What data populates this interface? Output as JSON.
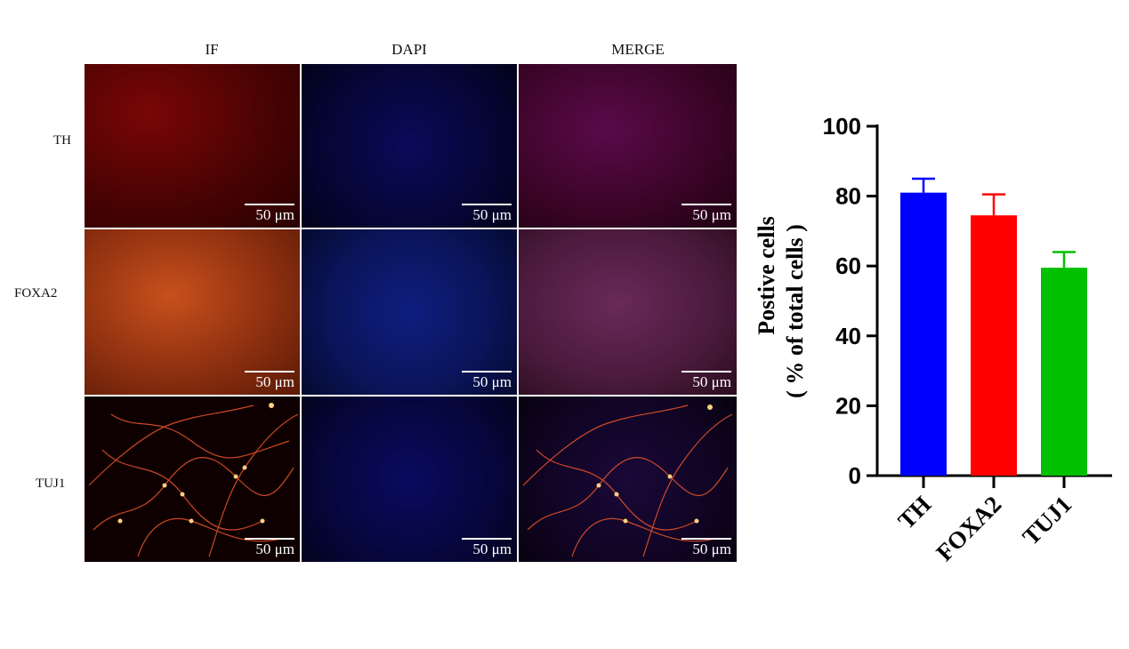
{
  "figure": {
    "column_labels": [
      "IF",
      "DAPI",
      "MERGE"
    ],
    "row_labels": [
      "TH",
      "FOXA2",
      "TUJ1"
    ],
    "scale_bar_label": "50 μm"
  },
  "chart_data": {
    "type": "bar",
    "categories": [
      "TH",
      "FOXA2",
      "TUJ1"
    ],
    "values": [
      81,
      74.5,
      59.5
    ],
    "errors": [
      4,
      6,
      4.5
    ],
    "colors": [
      "#0000ff",
      "#ff0000",
      "#00c000"
    ],
    "ylabel_line1": "Postive cells",
    "ylabel_line2": "( % of total cells )",
    "ylim": [
      0,
      100
    ],
    "yticks": [
      "0",
      "20",
      "40",
      "60",
      "80",
      "100"
    ],
    "grid": false
  }
}
